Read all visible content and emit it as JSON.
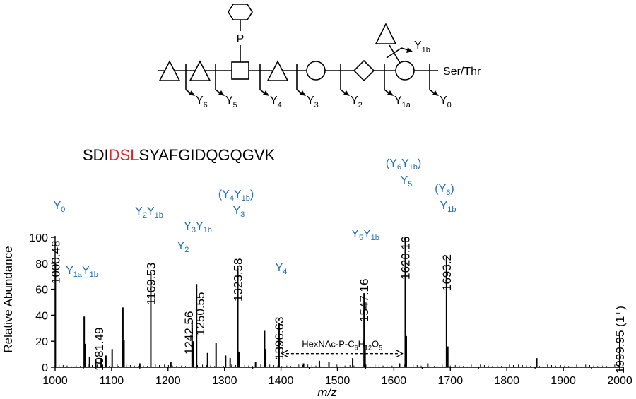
{
  "glycan": {
    "phosphate_label": "P",
    "reducing_end_label": "Ser/Thr",
    "fragments": [
      {
        "base": "Y",
        "sub": "6"
      },
      {
        "base": "Y",
        "sub": "5"
      },
      {
        "base": "Y",
        "sub": "4"
      },
      {
        "base": "Y",
        "sub": "3"
      },
      {
        "base": "Y",
        "sub": "2"
      },
      {
        "base": "Y",
        "sub": "1a"
      },
      {
        "base": "Y",
        "sub": "0"
      },
      {
        "base": "Y",
        "sub": "1b"
      }
    ]
  },
  "peptide": {
    "prefix": "SDI",
    "highlight": "DSL",
    "suffix": "SYAFGIDQGQGVK",
    "highlight_color": "#e8201f"
  },
  "colors": {
    "ion_label": "#1f6fb5",
    "peaks": "#000000"
  },
  "chart_data": {
    "type": "bar",
    "xlabel": "m/z",
    "ylabel": "Relative Abundance",
    "xlim": [
      1000,
      2000
    ],
    "ylim": [
      0,
      100
    ],
    "xticks": [
      1000,
      1100,
      1200,
      1300,
      1400,
      1500,
      1600,
      1700,
      1800,
      1900,
      2000
    ],
    "yticks": [
      0,
      20,
      40,
      60,
      80,
      100
    ],
    "peaks": [
      {
        "mz": 1000.48,
        "label": "1000.48",
        "intensity": 80,
        "ion": [
          [
            {
              "t": "Y"
            },
            {
              "t": "0",
              "sub": true
            }
          ]
        ]
      },
      {
        "mz": 1051.5,
        "intensity": 39
      },
      {
        "mz": 1053.0,
        "intensity": 18
      },
      {
        "mz": 1061.0,
        "intensity": 8
      },
      {
        "mz": 1072.0,
        "intensity": 6
      },
      {
        "mz": 1081.49,
        "label": "1081.49",
        "intensity": 7,
        "ion": [
          [
            {
              "t": "Y"
            },
            {
              "t": "1a",
              "sub": true
            },
            {
              "t": "Y"
            },
            {
              "t": "1b",
              "sub": true
            }
          ]
        ]
      },
      {
        "mz": 1090.0,
        "intensity": 9
      },
      {
        "mz": 1101.0,
        "intensity": 14
      },
      {
        "mz": 1120.0,
        "intensity": 46
      },
      {
        "mz": 1122.0,
        "intensity": 21
      },
      {
        "mz": 1150.0,
        "intensity": 3
      },
      {
        "mz": 1169.53,
        "label": "1169.53",
        "intensity": 73,
        "ion": [
          [
            {
              "t": "Y"
            },
            {
              "t": "2",
              "sub": true
            },
            {
              "t": "Y"
            },
            {
              "t": "1b",
              "sub": true
            }
          ]
        ]
      },
      {
        "mz": 1205.0,
        "intensity": 4
      },
      {
        "mz": 1242.56,
        "label": "1242.56",
        "intensity": 36,
        "ion": [
          [
            {
              "t": "Y"
            },
            {
              "t": "2",
              "sub": true
            }
          ]
        ]
      },
      {
        "mz": 1244.5,
        "intensity": 20
      },
      {
        "mz": 1250.55,
        "label": "1250.55",
        "intensity": 64,
        "ion": [
          [
            {
              "t": "Y"
            },
            {
              "t": "3",
              "sub": true
            },
            {
              "t": "Y"
            },
            {
              "t": "1b",
              "sub": true
            }
          ]
        ]
      },
      {
        "mz": 1270.0,
        "intensity": 11
      },
      {
        "mz": 1285.0,
        "intensity": 19
      },
      {
        "mz": 1302.0,
        "intensity": 9
      },
      {
        "mz": 1310.0,
        "intensity": 7
      },
      {
        "mz": 1323.58,
        "label": "1323.58",
        "intensity": 77,
        "ion": [
          [
            {
              "t": "(Y"
            },
            {
              "t": "4",
              "sub": true
            },
            {
              "t": "Y"
            },
            {
              "t": "1b",
              "sub": true
            },
            {
              "t": ")"
            }
          ],
          [
            {
              "t": "Y"
            },
            {
              "t": "3",
              "sub": true
            }
          ]
        ]
      },
      {
        "mz": 1325.5,
        "intensity": 12
      },
      {
        "mz": 1355.0,
        "intensity": 4
      },
      {
        "mz": 1371.0,
        "intensity": 28
      },
      {
        "mz": 1373.0,
        "intensity": 14
      },
      {
        "mz": 1396.63,
        "label": "1396.63",
        "intensity": 34,
        "ion": [
          [
            {
              "t": "Y"
            },
            {
              "t": "4",
              "sub": true
            }
          ]
        ]
      },
      {
        "mz": 1440.0,
        "intensity": 3
      },
      {
        "mz": 1468.0,
        "intensity": 5
      },
      {
        "mz": 1485.0,
        "intensity": 4
      },
      {
        "mz": 1527.0,
        "intensity": 7
      },
      {
        "mz": 1547.16,
        "label": "1547.16",
        "intensity": 57,
        "ion": [
          [
            {
              "t": "Y"
            },
            {
              "t": "5",
              "sub": true
            },
            {
              "t": "Y"
            },
            {
              "t": "1b",
              "sub": true
            }
          ]
        ]
      },
      {
        "mz": 1549.0,
        "intensity": 17
      },
      {
        "mz": 1610.0,
        "intensity": 3
      },
      {
        "mz": 1620.16,
        "label": "1620.16",
        "intensity": 100,
        "ion": [
          [
            {
              "t": "(Y"
            },
            {
              "t": "6",
              "sub": true
            },
            {
              "t": "Y"
            },
            {
              "t": "1b",
              "sub": true
            },
            {
              "t": ")"
            }
          ],
          [
            {
              "t": "Y"
            },
            {
              "t": "5",
              "sub": true
            }
          ]
        ]
      },
      {
        "mz": 1622.0,
        "intensity": 24
      },
      {
        "mz": 1660.0,
        "intensity": 3
      },
      {
        "mz": 1693.2,
        "label": "1693.2",
        "intensity": 86,
        "ion": [
          [
            {
              "t": "(Y"
            },
            {
              "t": "6",
              "sub": true
            },
            {
              "t": ")"
            }
          ],
          [
            {
              "t": "Y"
            },
            {
              "t": "1b",
              "sub": true
            }
          ]
        ]
      },
      {
        "mz": 1695.5,
        "intensity": 16
      },
      {
        "mz": 1853.0,
        "intensity": 7
      },
      {
        "mz": 1999.95,
        "label": "1999.95 (1⁺)",
        "intensity": 27
      }
    ],
    "annotation": {
      "from": 1396.63,
      "to": 1620.16,
      "intensity": 10.5,
      "label": [
        {
          "t": "HexNAc-P-C"
        },
        {
          "t": "6",
          "sub": true
        },
        {
          "t": "H"
        },
        {
          "t": "12",
          "sub": true
        },
        {
          "t": "O"
        },
        {
          "t": "5",
          "sub": true
        }
      ]
    }
  }
}
